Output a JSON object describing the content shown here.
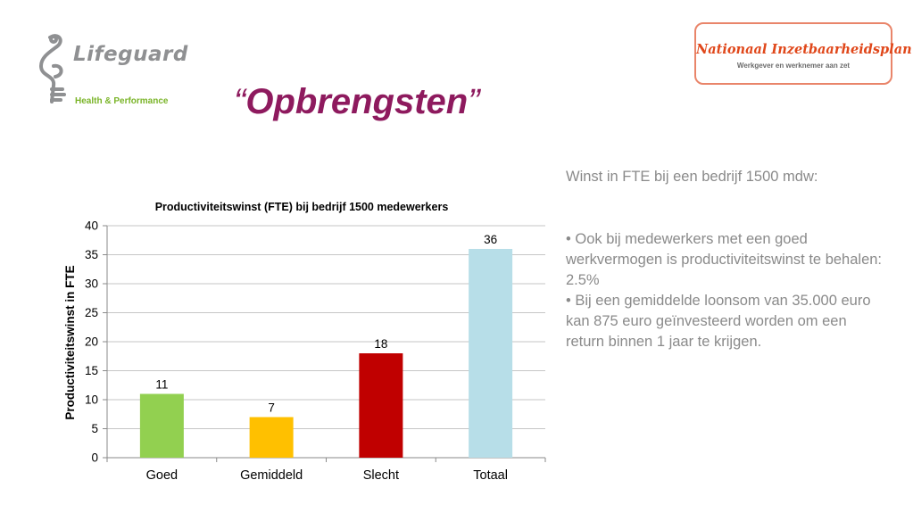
{
  "logos": {
    "left": {
      "name": "Lifeguard",
      "tagline": "Health & Performance"
    },
    "right": {
      "name": "Nationaal Inzetbaarheidsplan",
      "tagline": "Werkgever en werknemer aan zet"
    }
  },
  "slide": {
    "title_open_quote": "“",
    "title": "Opbrengsten",
    "title_close_quote": "”",
    "title_color": "#8e1a5e"
  },
  "side_text": {
    "heading": "Winst in FTE bij een bedrijf 1500 mdw:",
    "bullets": [
      "• Ook bij medewerkers met een goed werkvermogen is productiviteitswinst te behalen: 2.5%",
      "• Bij een gemiddelde loonsom van 35.000 euro kan 875 euro geïnvesteerd worden om een return binnen 1 jaar te krijgen."
    ]
  },
  "chart_data": {
    "type": "bar",
    "title": "Productiviteitswinst (FTE) bij bedrijf 1500 medewerkers",
    "xlabel": "",
    "ylabel": "Productiviteitswinst in FTE",
    "categories": [
      "Goed",
      "Gemiddeld",
      "Slecht",
      "Totaal"
    ],
    "values": [
      11,
      7,
      18,
      36
    ],
    "colors": [
      "#92d050",
      "#ffc000",
      "#c00000",
      "#b7dee8"
    ],
    "data_labels": [
      "11",
      "7",
      "18",
      "36"
    ],
    "ylim": [
      0,
      40
    ],
    "yticks": [
      0,
      5,
      10,
      15,
      20,
      25,
      30,
      35,
      40
    ],
    "grid": true,
    "legend": "none"
  }
}
